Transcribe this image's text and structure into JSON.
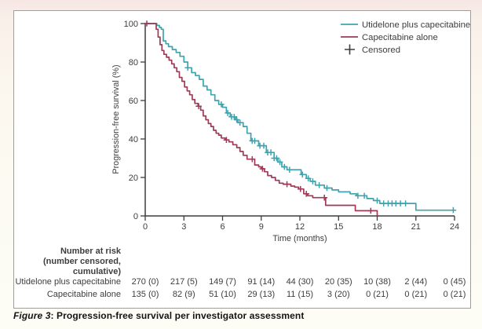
{
  "figure": {
    "caption_label": "Figure 3",
    "caption_rest": ": Progression-free survival per investigator assessment"
  },
  "chart_data": {
    "type": "line",
    "subtype": "kaplan-meier-step",
    "title": "",
    "xlabel": "Time (months)",
    "ylabel": "Progression-free survival (%)",
    "xlim": [
      0,
      24
    ],
    "ylim": [
      0,
      100
    ],
    "xticks": [
      0,
      3,
      6,
      9,
      12,
      15,
      18,
      21,
      24
    ],
    "yticks": [
      0,
      20,
      40,
      60,
      80,
      100
    ],
    "grid": false,
    "legend": {
      "position": "top-right",
      "censored_label": "Censored"
    },
    "axis_color": "#3d3d3d",
    "series": [
      {
        "name": "Utidelone plus capecitabine",
        "color": "#3da4ae",
        "end": 24,
        "steps": [
          [
            0,
            100
          ],
          [
            0.9,
            99
          ],
          [
            1.1,
            98
          ],
          [
            1.25,
            97
          ],
          [
            1.4,
            91
          ],
          [
            1.6,
            89.5
          ],
          [
            1.8,
            88
          ],
          [
            2.1,
            86.5
          ],
          [
            2.4,
            85
          ],
          [
            2.7,
            83
          ],
          [
            3.0,
            80
          ],
          [
            3.3,
            77
          ],
          [
            3.6,
            74.5
          ],
          [
            3.9,
            73
          ],
          [
            4.2,
            71
          ],
          [
            4.5,
            67.5
          ],
          [
            4.8,
            65.5
          ],
          [
            5.1,
            63
          ],
          [
            5.4,
            60
          ],
          [
            5.7,
            58
          ],
          [
            6.0,
            56.5
          ],
          [
            6.3,
            53.5
          ],
          [
            6.6,
            51.5
          ],
          [
            7.0,
            50
          ],
          [
            7.2,
            48.5
          ],
          [
            7.6,
            46.5
          ],
          [
            7.9,
            43
          ],
          [
            8.2,
            39
          ],
          [
            8.8,
            36.5
          ],
          [
            9.4,
            33
          ],
          [
            10.0,
            30
          ],
          [
            10.3,
            28
          ],
          [
            10.6,
            25.5
          ],
          [
            11.0,
            24
          ],
          [
            12.1,
            21.5
          ],
          [
            12.5,
            19.5
          ],
          [
            12.8,
            18
          ],
          [
            13.2,
            16
          ],
          [
            13.9,
            14.5
          ],
          [
            14.5,
            13.5
          ],
          [
            15.0,
            12.5
          ],
          [
            15.9,
            11.5
          ],
          [
            16.4,
            10.5
          ],
          [
            17.2,
            9
          ],
          [
            17.7,
            8
          ],
          [
            18.2,
            6.5
          ],
          [
            21.0,
            3
          ]
        ],
        "censor_times": [
          3.3,
          5.9,
          6.4,
          6.7,
          6.9,
          7.1,
          7.35,
          8.3,
          8.5,
          8.9,
          9.2,
          9.5,
          9.75,
          10.0,
          10.2,
          10.45,
          10.8,
          11.2,
          12.2,
          12.65,
          13.0,
          13.5,
          14.1,
          16.5,
          17.0,
          18.0,
          18.5,
          18.85,
          19.15,
          19.45,
          19.8,
          20.2,
          23.9
        ]
      },
      {
        "name": "Capecitabine alone",
        "color": "#9e3a56",
        "end": 18,
        "steps": [
          [
            0,
            100
          ],
          [
            0.85,
            97
          ],
          [
            1.0,
            93
          ],
          [
            1.15,
            89
          ],
          [
            1.3,
            86
          ],
          [
            1.45,
            84
          ],
          [
            1.65,
            82.5
          ],
          [
            1.85,
            81
          ],
          [
            2.05,
            79
          ],
          [
            2.25,
            77
          ],
          [
            2.45,
            75
          ],
          [
            2.65,
            72
          ],
          [
            2.85,
            70
          ],
          [
            3.05,
            67
          ],
          [
            3.25,
            65
          ],
          [
            3.45,
            63
          ],
          [
            3.65,
            60.5
          ],
          [
            3.85,
            58.5
          ],
          [
            4.1,
            57
          ],
          [
            4.3,
            55
          ],
          [
            4.5,
            52
          ],
          [
            4.7,
            50
          ],
          [
            4.9,
            48
          ],
          [
            5.1,
            46.5
          ],
          [
            5.3,
            44.5
          ],
          [
            5.5,
            43
          ],
          [
            5.7,
            42
          ],
          [
            5.9,
            40.5
          ],
          [
            6.2,
            39.5
          ],
          [
            6.5,
            38.5
          ],
          [
            6.8,
            37
          ],
          [
            7.1,
            35.5
          ],
          [
            7.35,
            33.5
          ],
          [
            7.6,
            31.5
          ],
          [
            7.9,
            29.5
          ],
          [
            8.5,
            26.5
          ],
          [
            8.8,
            25.5
          ],
          [
            9.0,
            24.5
          ],
          [
            9.25,
            23
          ],
          [
            9.5,
            21
          ],
          [
            9.8,
            20
          ],
          [
            10.1,
            18.5
          ],
          [
            10.4,
            17
          ],
          [
            10.7,
            16.5
          ],
          [
            11.3,
            15.5
          ],
          [
            11.6,
            15
          ],
          [
            11.9,
            14
          ],
          [
            12.3,
            11.5
          ],
          [
            12.6,
            10.5
          ],
          [
            13.0,
            9.5
          ],
          [
            14.0,
            5.5
          ],
          [
            16.3,
            2.7
          ],
          [
            18.0,
            0
          ]
        ],
        "censor_times": [
          0.12,
          4.15,
          6.3,
          8.3,
          9.1,
          11.0,
          12.05,
          12.5,
          13.9,
          17.5
        ]
      }
    ],
    "number_at_risk": {
      "header_lines": [
        "Number at risk",
        "(number censored,",
        "cumulative)"
      ],
      "rows": [
        {
          "label": "Utidelone plus capecitabine",
          "values": [
            "270 (0)",
            "217 (5)",
            "149 (7)",
            "91 (14)",
            "44 (30)",
            "20 (35)",
            "10 (38)",
            "2 (44)",
            "0 (45)"
          ]
        },
        {
          "label": "Capecitabine alone",
          "values": [
            "135 (0)",
            "82 (9)",
            "51 (10)",
            "29 (13)",
            "11 (15)",
            "3 (20)",
            "0 (21)",
            "0 (21)",
            "0 (21)"
          ]
        }
      ]
    }
  },
  "colors": {
    "utidelone": "#3da4ae",
    "capecitabine": "#9e3a56",
    "axis": "#3d3d3d",
    "panel_border": "#a39d99",
    "page_top": "#f6e6e3"
  }
}
